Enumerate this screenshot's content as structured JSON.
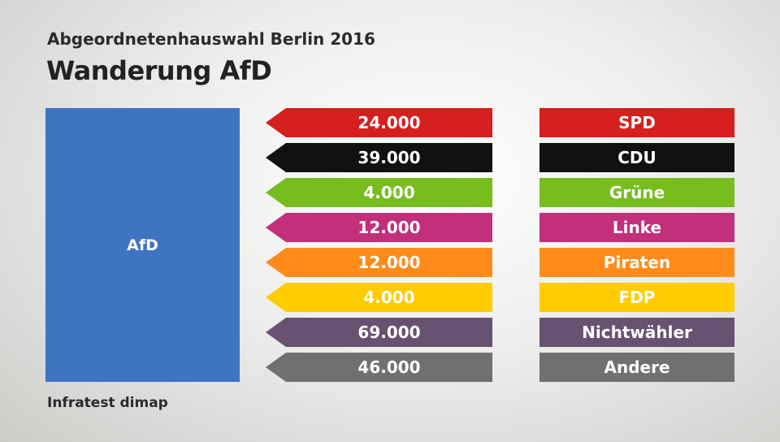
{
  "header": {
    "subtitle": "Abgeordnetenhauswahl Berlin 2016",
    "title": "Wanderung AfD"
  },
  "footer": {
    "source": "Infratest dimap"
  },
  "colors": {
    "target": "#3f74c3"
  },
  "chart_data": {
    "type": "bar",
    "target": "AfD",
    "categories": [
      "SPD",
      "CDU",
      "Grüne",
      "Linke",
      "Piraten",
      "FDP",
      "Nichtwähler",
      "Andere"
    ],
    "values": [
      24000,
      39000,
      4000,
      12000,
      12000,
      4000,
      69000,
      46000
    ],
    "value_labels": [
      "24.000",
      "39.000",
      "4.000",
      "12.000",
      "12.000",
      "4.000",
      "69.000",
      "46.000"
    ],
    "colors": [
      "#d61f1f",
      "#111111",
      "#78bd1e",
      "#c22f7a",
      "#ff8c1a",
      "#ffcc00",
      "#675271",
      "#707070"
    ]
  }
}
